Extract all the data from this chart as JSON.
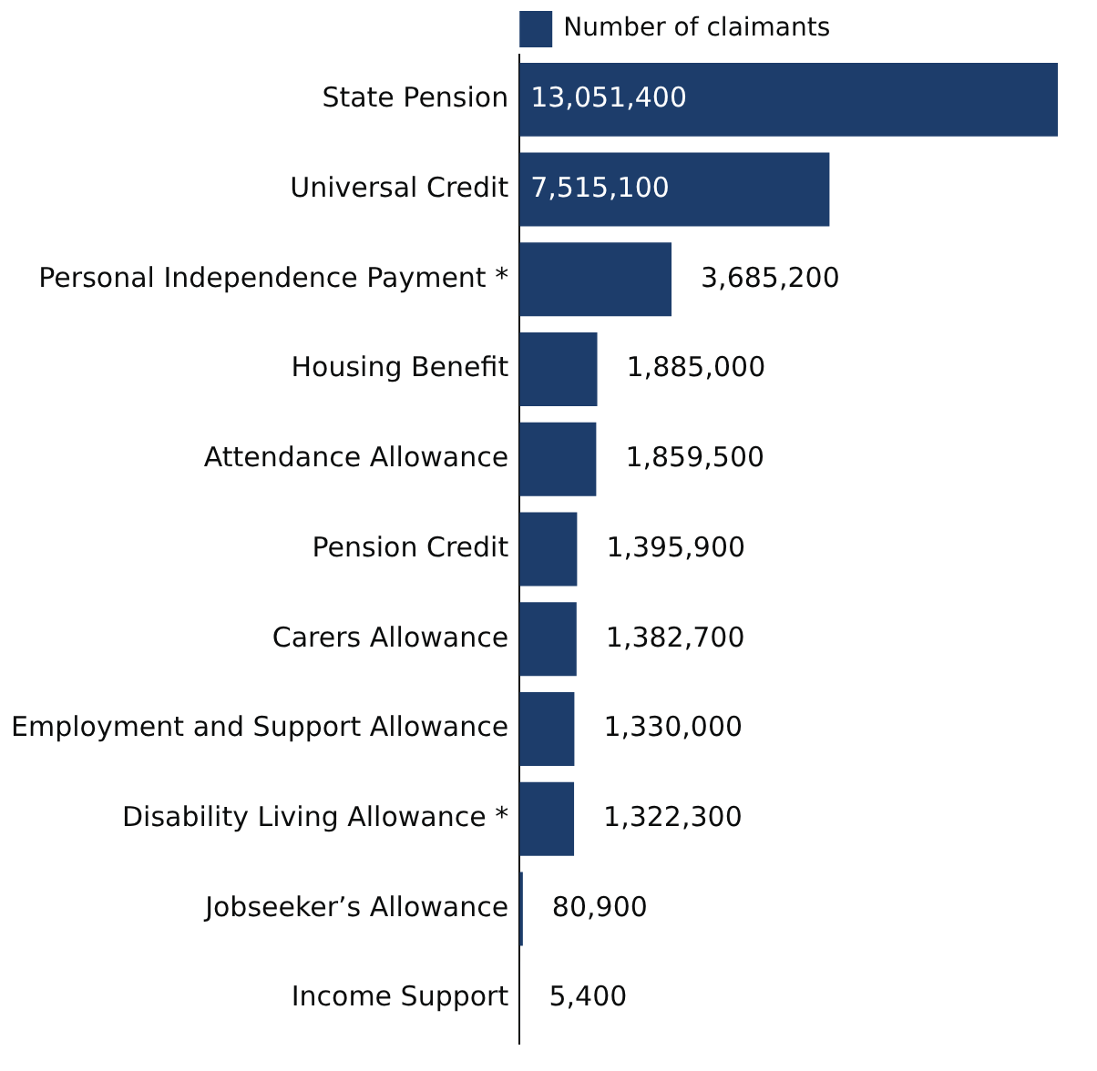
{
  "chart_data": {
    "type": "bar",
    "orientation": "horizontal",
    "categories": [
      "State Pension",
      "Universal Credit",
      "Personal Independence Payment *",
      "Housing Benefit",
      "Attendance Allowance",
      "Pension Credit",
      "Carers Allowance",
      "Employment and Support Allowance",
      "Disability Living Allowance *",
      "Jobseeker’s Allowance",
      "Income Support"
    ],
    "series": [
      {
        "name": "Number of claimants",
        "color": "#1d3d6b",
        "values": [
          13051400,
          7515100,
          3685200,
          1885000,
          1859500,
          1395900,
          1382700,
          1330000,
          1322300,
          80900,
          5400
        ],
        "value_labels": [
          "13,051,400",
          "7,515,100",
          "3,685,200",
          "1,885,000",
          "1,859,500",
          "1,395,900",
          "1,382,700",
          "1,330,000",
          "1,322,300",
          "80,900",
          "5,400"
        ]
      }
    ],
    "legend": "top",
    "grid": false
  }
}
